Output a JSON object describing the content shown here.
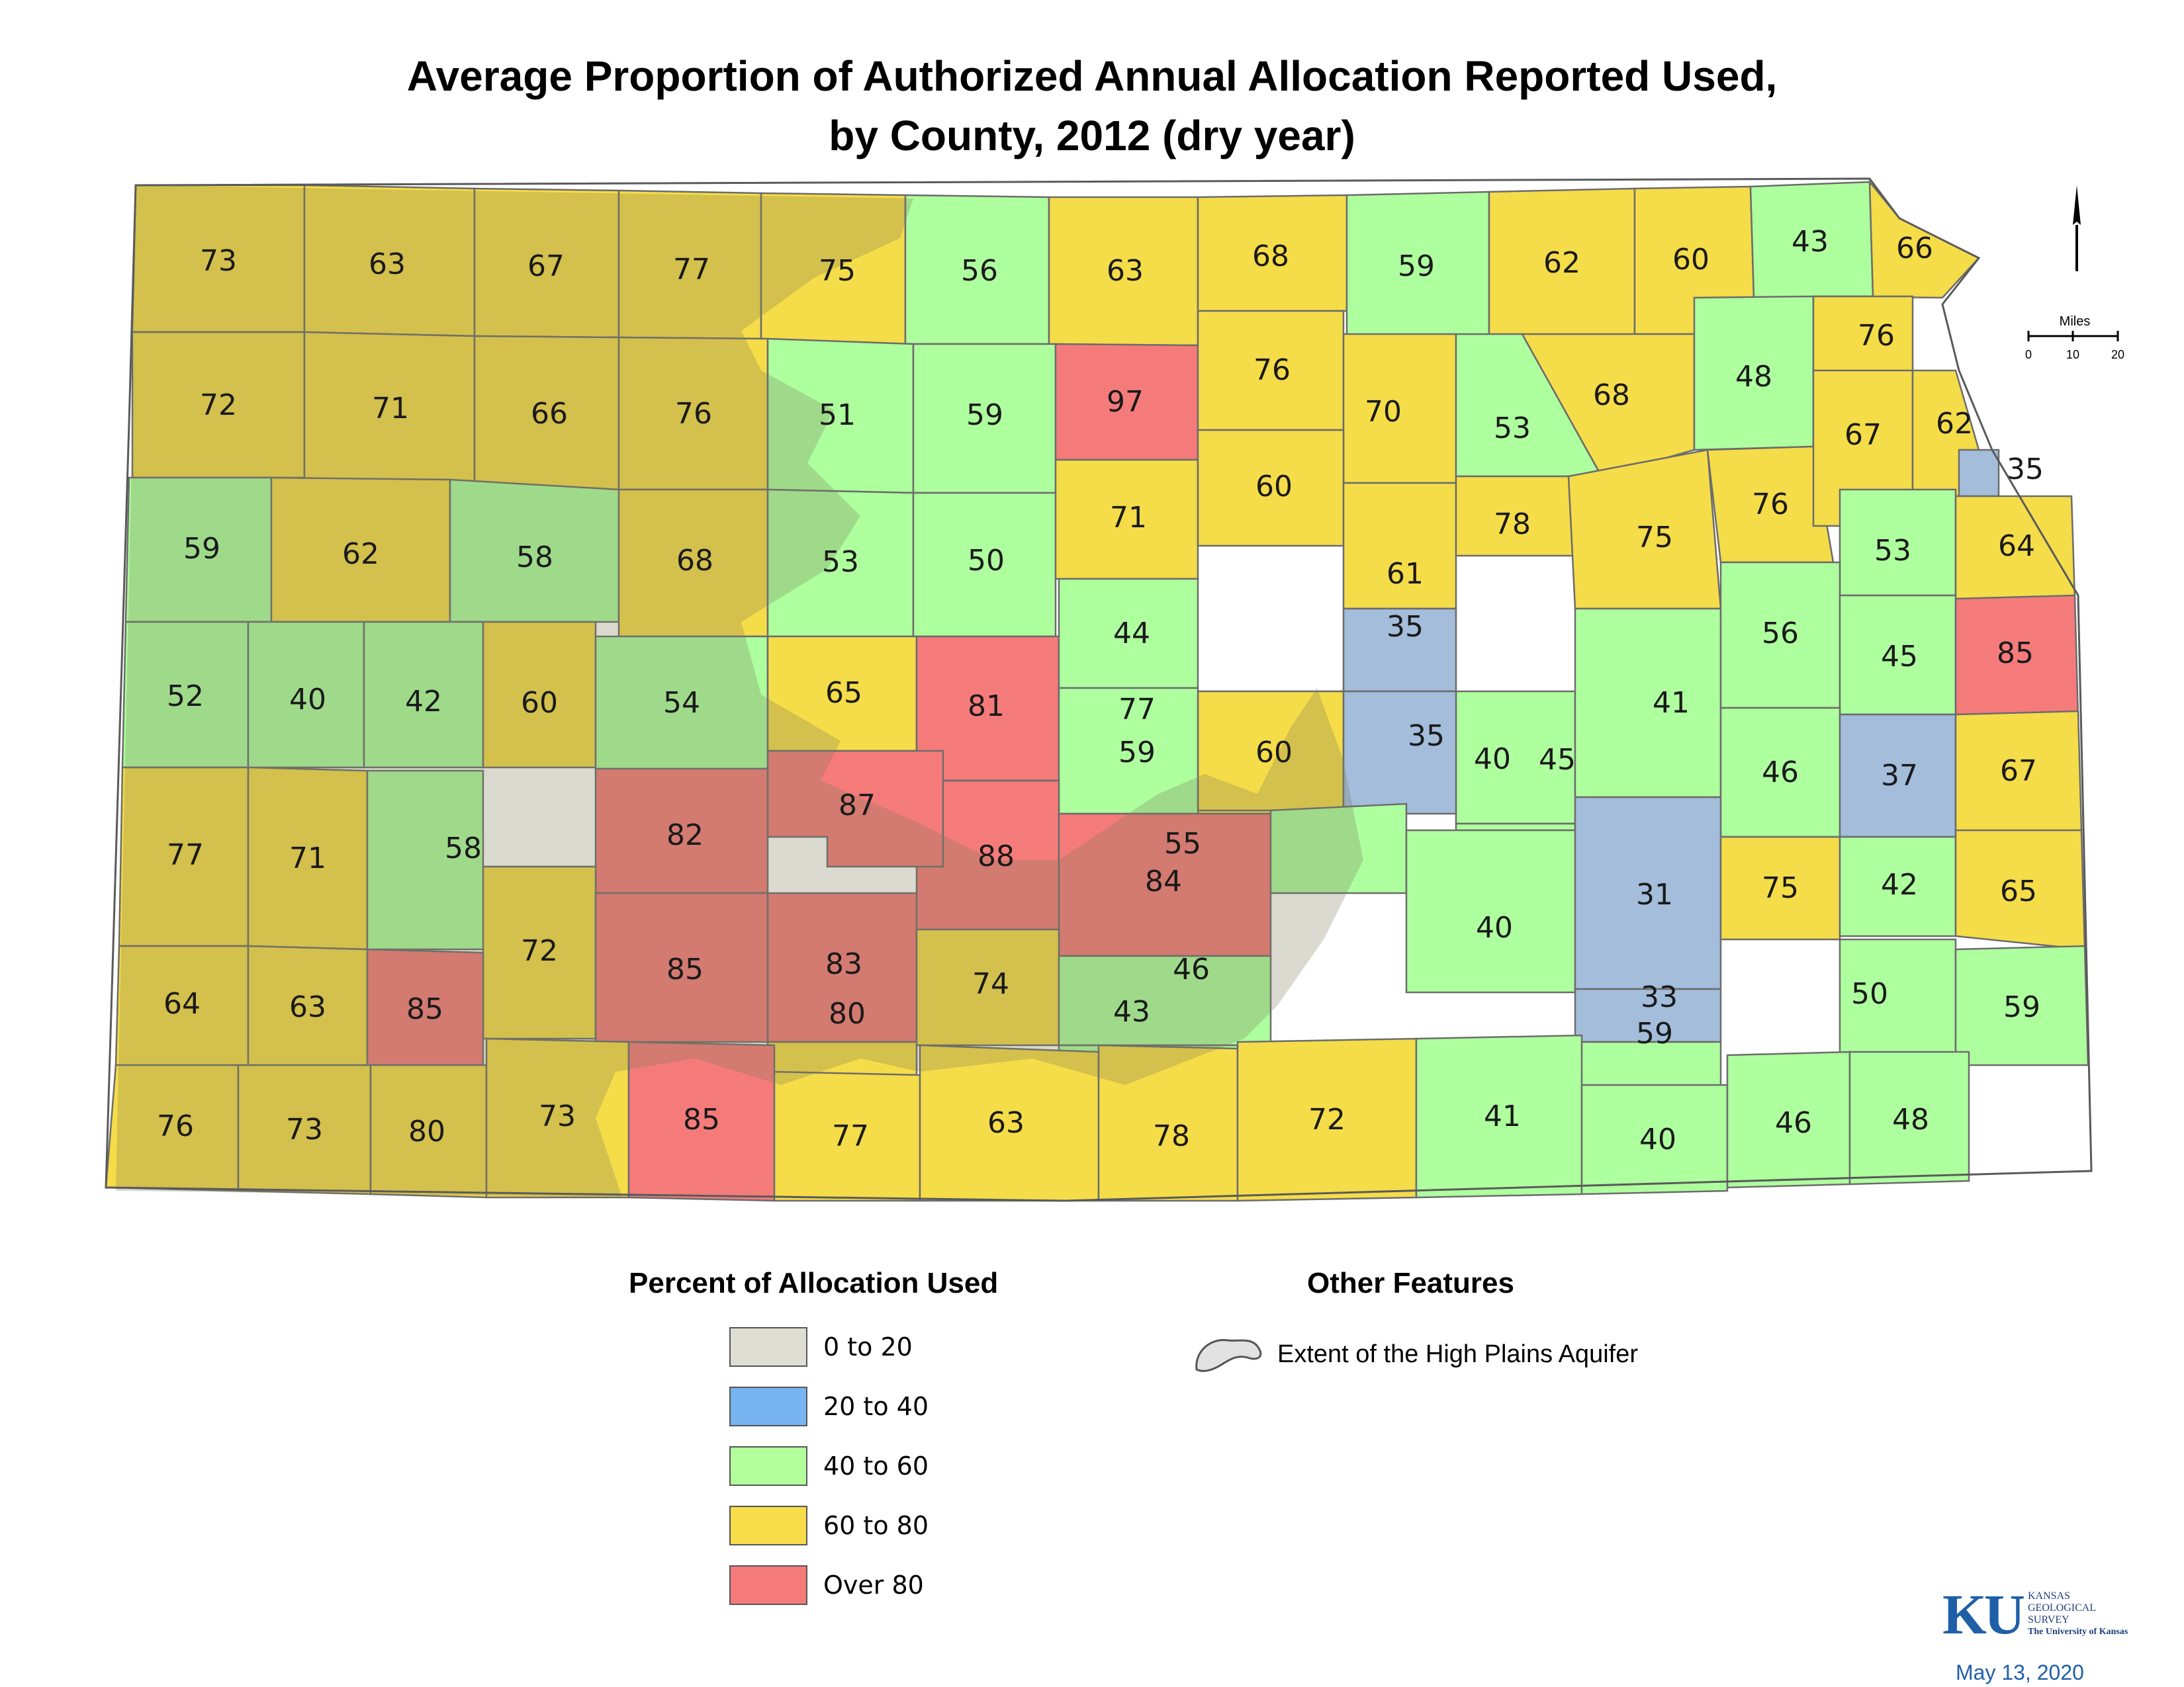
{
  "title": {
    "line1": "Average Proportion of Authorized Annual Allocation Reported Used,",
    "line2": "by County, 2012 (dry year)"
  },
  "colors": {
    "class_0_20": "#deded4",
    "class_20_40": "#a3bddb",
    "class_40_60": "#aeff9e",
    "class_60_80": "#f5dc49",
    "class_over_80": "#f57b7b",
    "aquifer_overlay": "#7a7a5a",
    "border": "#6c6c6c"
  },
  "legend": {
    "title": "Percent of Allocation Used",
    "items": [
      {
        "label": "0 to 20",
        "color": "#deded4"
      },
      {
        "label": "20 to 40",
        "color": "#78b4f2"
      },
      {
        "label": "40 to 60",
        "color": "#b2ff9c"
      },
      {
        "label": "60 to 80",
        "color": "#f8dc4a"
      },
      {
        "label": "Over 80",
        "color": "#f57b7b"
      }
    ]
  },
  "other_features": {
    "title": "Other Features",
    "aquifer_label": "Extent of the High Plains Aquifer"
  },
  "scale": {
    "label": "Miles",
    "ticks": [
      "0",
      "10",
      "20"
    ]
  },
  "credit": {
    "logo_letters": "KU",
    "org_line1": "KANSAS",
    "org_line2": "GEOLOGICAL",
    "org_line3": "SURVEY",
    "org_line4": "The University of Kansas",
    "date": "May 13, 2020"
  },
  "county_values": [
    "73",
    "63",
    "67",
    "77",
    "75",
    "56",
    "63",
    "68",
    "59",
    "62",
    "60",
    "43",
    "66",
    "72",
    "71",
    "66",
    "76",
    "51",
    "59",
    "97",
    "76",
    "70",
    "53",
    "68",
    "48",
    "76",
    "59",
    "62",
    "58",
    "68",
    "53",
    "50",
    "71",
    "60",
    "61",
    "78",
    "75",
    "76",
    "67",
    "62",
    "35",
    "53",
    "64",
    "52",
    "40",
    "42",
    "60",
    "54",
    "65",
    "81",
    "44",
    "60",
    "35",
    "40",
    "41",
    "56",
    "45",
    "85",
    "77",
    "59",
    "35",
    "45",
    "46",
    "37",
    "67",
    "77",
    "71",
    "58",
    "82",
    "87",
    "88",
    "84",
    "55",
    "40",
    "31",
    "75",
    "42",
    "65",
    "72",
    "85",
    "83",
    "74",
    "46",
    "33",
    "50",
    "59",
    "64",
    "63",
    "85",
    "80",
    "43",
    "59",
    "76",
    "73",
    "80",
    "73",
    "85",
    "77",
    "63",
    "78",
    "72",
    "41",
    "40",
    "46",
    "48"
  ]
}
